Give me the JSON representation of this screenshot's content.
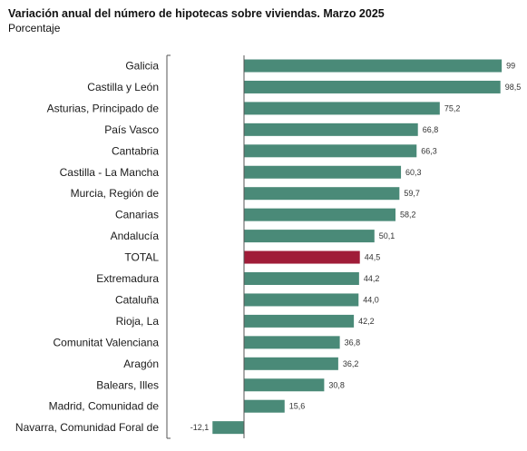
{
  "chart_data": {
    "type": "bar",
    "orientation": "horizontal",
    "title": "Variación anual del número de hipotecas sobre viviendas. Marzo 2025",
    "subtitle": "Porcentaje",
    "categories": [
      "Galicia",
      "Castilla y León",
      "Asturias, Principado de",
      "País Vasco",
      "Cantabria",
      "Castilla - La Mancha",
      "Murcia, Región de",
      "Canarias",
      "Andalucía",
      "TOTAL",
      "Extremadura",
      "Cataluña",
      "Rioja, La",
      "Comunitat Valenciana",
      "Aragón",
      "Balears, Illes",
      "Madrid, Comunidad de",
      "Navarra, Comunidad Foral de"
    ],
    "values": [
      99,
      98.5,
      75.2,
      66.8,
      66.3,
      60.3,
      59.7,
      58.2,
      50.1,
      44.5,
      44.2,
      44.0,
      42.2,
      36.8,
      36.2,
      30.8,
      15.6,
      -12.1
    ],
    "value_labels": [
      "99",
      "98,5",
      "75,2",
      "66,8",
      "66,3",
      "60,3",
      "59,7",
      "58,2",
      "50,1",
      "44,5",
      "44,2",
      "44,0",
      "42,2",
      "36,8",
      "36,2",
      "30,8",
      "15,6",
      "-12,1"
    ],
    "highlight": "TOTAL",
    "colors": {
      "bar": "#4a8a78",
      "highlight": "#a01c38",
      "axis": "#555555"
    },
    "xlim": [
      -13,
      100
    ],
    "grid": false,
    "legend": "none"
  }
}
